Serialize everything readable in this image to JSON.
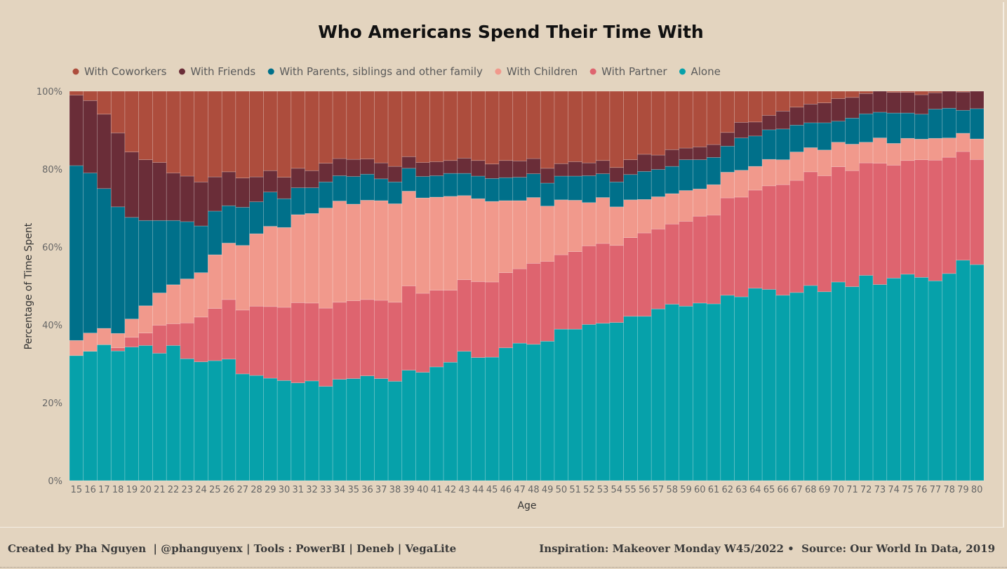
{
  "colors": {
    "background": "#e3d4bf",
    "coworkers": "#ad4d3d",
    "friends": "#6a2d38",
    "family": "#00708a",
    "children": "#f1998c",
    "partner": "#de646f",
    "alone": "#06a1aa"
  },
  "footer": {
    "left": "Created by Pha Nguyen  | @phanguyenx | Tools : PowerBI | Deneb | VegaLite",
    "right": "Inspiration: Makeover Monday W45/2022 •  Source: Our World In Data, 2019"
  },
  "chart_data": {
    "type": "bar",
    "stacked": "normalized-100%",
    "title": "Who Americans Spend Their Time With",
    "xlabel": "Age",
    "ylabel": "Percentage of Time Spent",
    "y_ticks": [
      "0%",
      "20%",
      "40%",
      "60%",
      "80%",
      "100%"
    ],
    "ylim": [
      0,
      100
    ],
    "grid": false,
    "legend_position": "top",
    "legend": [
      "With Coworkers",
      "With Friends",
      "With Parents, siblings and other family",
      "With Children",
      "With Partner",
      "Alone"
    ],
    "stack_order_bottom_to_top": [
      "Alone",
      "With Partner",
      "With Children",
      "With Parents, siblings and other family",
      "With Friends",
      "With Coworkers"
    ],
    "categories": [
      15,
      16,
      17,
      18,
      19,
      20,
      21,
      22,
      23,
      24,
      25,
      26,
      27,
      28,
      29,
      30,
      31,
      32,
      33,
      34,
      35,
      36,
      37,
      38,
      39,
      40,
      41,
      42,
      43,
      44,
      45,
      46,
      47,
      48,
      49,
      50,
      51,
      52,
      53,
      54,
      55,
      56,
      57,
      58,
      59,
      60,
      61,
      62,
      63,
      64,
      65,
      66,
      67,
      68,
      69,
      70,
      71,
      72,
      73,
      74,
      75,
      76,
      77,
      78,
      79,
      80
    ],
    "series": [
      {
        "name": "Alone",
        "key": "alone",
        "values": [
          32.1,
          33.2,
          34.9,
          33.3,
          34.3,
          34.7,
          32.7,
          34.7,
          31.3,
          30.5,
          30.8,
          31.2,
          27.4,
          27.0,
          26.3,
          25.7,
          25.1,
          25.6,
          24.2,
          26.0,
          26.2,
          26.9,
          26.2,
          25.5,
          27.5,
          27.8,
          29.2,
          30.4,
          33.2,
          31.6,
          31.7,
          34.1,
          35.3,
          35.0,
          35.8,
          38.9,
          38.9,
          40.1,
          40.4,
          40.6,
          42.2,
          42.2,
          44.1,
          45.3,
          44.8,
          45.6,
          45.4,
          47.6,
          47.2,
          49.4,
          49.1,
          47.6,
          48.3,
          50.1,
          48.5,
          51.0,
          49.8,
          52.7,
          50.4,
          52.0,
          53.0,
          52.2,
          51.3,
          53.6,
          56.6,
          55.7
        ]
      },
      {
        "name": "With Partner",
        "key": "partner",
        "values": [
          0.0,
          0.0,
          0.0,
          0.8,
          2.5,
          3.2,
          7.2,
          5.6,
          9.2,
          11.5,
          13.4,
          15.3,
          16.4,
          17.8,
          18.4,
          18.8,
          20.6,
          20.0,
          20.1,
          19.8,
          20.0,
          19.6,
          20.1,
          20.3,
          21.0,
          20.3,
          19.7,
          18.5,
          18.4,
          19.5,
          19.3,
          19.3,
          19.1,
          20.8,
          20.5,
          19.1,
          19.9,
          20.2,
          20.5,
          19.8,
          20.2,
          21.4,
          20.5,
          20.6,
          21.8,
          22.3,
          22.8,
          25.0,
          25.6,
          25.2,
          26.6,
          28.4,
          28.8,
          29.2,
          29.8,
          29.6,
          29.8,
          28.9,
          31.2,
          29.0,
          29.2,
          30.2,
          31.0,
          30.1,
          27.9,
          27.1
        ]
      },
      {
        "name": "With Children",
        "key": "children",
        "values": [
          3.9,
          4.7,
          4.2,
          3.7,
          4.7,
          7.0,
          8.3,
          10.0,
          11.3,
          11.4,
          13.8,
          14.5,
          16.6,
          18.6,
          20.6,
          20.5,
          22.6,
          23.0,
          25.7,
          26.0,
          24.8,
          25.5,
          25.6,
          25.3,
          23.6,
          24.5,
          23.9,
          24.1,
          21.6,
          21.3,
          20.7,
          18.5,
          17.5,
          16.9,
          14.2,
          14.1,
          13.2,
          11.1,
          11.8,
          9.9,
          9.7,
          8.6,
          8.3,
          7.8,
          7.9,
          7.0,
          7.8,
          6.6,
          6.9,
          6.1,
          6.8,
          6.4,
          7.3,
          6.2,
          6.6,
          6.3,
          6.8,
          5.3,
          6.5,
          5.6,
          5.7,
          5.3,
          5.6,
          5.0,
          4.7,
          5.3
        ]
      },
      {
        "name": "With Parents, siblings and other family",
        "key": "family",
        "values": [
          44.9,
          41.1,
          35.9,
          32.5,
          26.1,
          21.9,
          18.6,
          16.5,
          14.7,
          12.0,
          11.2,
          9.6,
          9.8,
          8.2,
          8.8,
          7.4,
          6.9,
          6.6,
          6.7,
          6.5,
          7.1,
          6.7,
          5.6,
          5.6,
          5.7,
          5.5,
          5.5,
          5.9,
          5.7,
          5.8,
          5.9,
          5.9,
          6.0,
          6.1,
          5.9,
          6.1,
          6.2,
          6.9,
          6.1,
          6.4,
          6.5,
          7.2,
          7.0,
          7.0,
          7.9,
          7.5,
          7.0,
          6.7,
          8.3,
          7.8,
          7.6,
          7.9,
          6.9,
          6.4,
          7.0,
          5.4,
          6.7,
          7.3,
          6.6,
          7.8,
          6.5,
          6.4,
          7.5,
          7.7,
          5.9,
          7.8
        ]
      },
      {
        "name": "With Friends",
        "key": "friends",
        "values": [
          18.1,
          18.6,
          19.1,
          19.0,
          16.8,
          15.6,
          14.9,
          12.2,
          11.7,
          11.3,
          8.8,
          8.7,
          7.5,
          6.4,
          5.5,
          5.5,
          5.0,
          4.4,
          4.8,
          4.4,
          4.4,
          3.9,
          4.1,
          4.0,
          2.9,
          3.6,
          3.6,
          3.3,
          3.9,
          4.0,
          3.7,
          4.4,
          4.2,
          3.9,
          3.8,
          3.2,
          3.7,
          3.3,
          3.4,
          3.7,
          3.8,
          4.4,
          3.7,
          4.3,
          3.0,
          3.3,
          3.3,
          3.5,
          4.0,
          3.6,
          3.7,
          4.6,
          4.6,
          4.8,
          5.1,
          5.8,
          5.3,
          5.2,
          5.4,
          5.3,
          5.3,
          5.0,
          4.2,
          4.4,
          4.7,
          4.5
        ]
      },
      {
        "name": "With Coworkers",
        "key": "coworkers",
        "values": [
          1.0,
          2.4,
          5.9,
          10.7,
          15.6,
          17.6,
          18.3,
          21.0,
          21.8,
          23.3,
          22.0,
          20.7,
          22.3,
          22.0,
          20.4,
          22.1,
          19.8,
          20.4,
          18.5,
          17.3,
          17.5,
          17.4,
          18.4,
          19.3,
          16.3,
          18.3,
          18.1,
          17.8,
          17.2,
          17.8,
          18.7,
          17.8,
          17.9,
          17.3,
          19.8,
          18.6,
          18.1,
          18.4,
          17.8,
          19.6,
          17.6,
          16.2,
          16.4,
          15.0,
          14.6,
          14.3,
          13.7,
          10.6,
          8.0,
          7.9,
          6.2,
          5.1,
          4.1,
          3.3,
          3.0,
          1.9,
          1.6,
          0.6,
          -0.1,
          0.3,
          0.3,
          0.9,
          0.4,
          -0.8,
          0.2,
          -0.4
        ]
      }
    ]
  }
}
